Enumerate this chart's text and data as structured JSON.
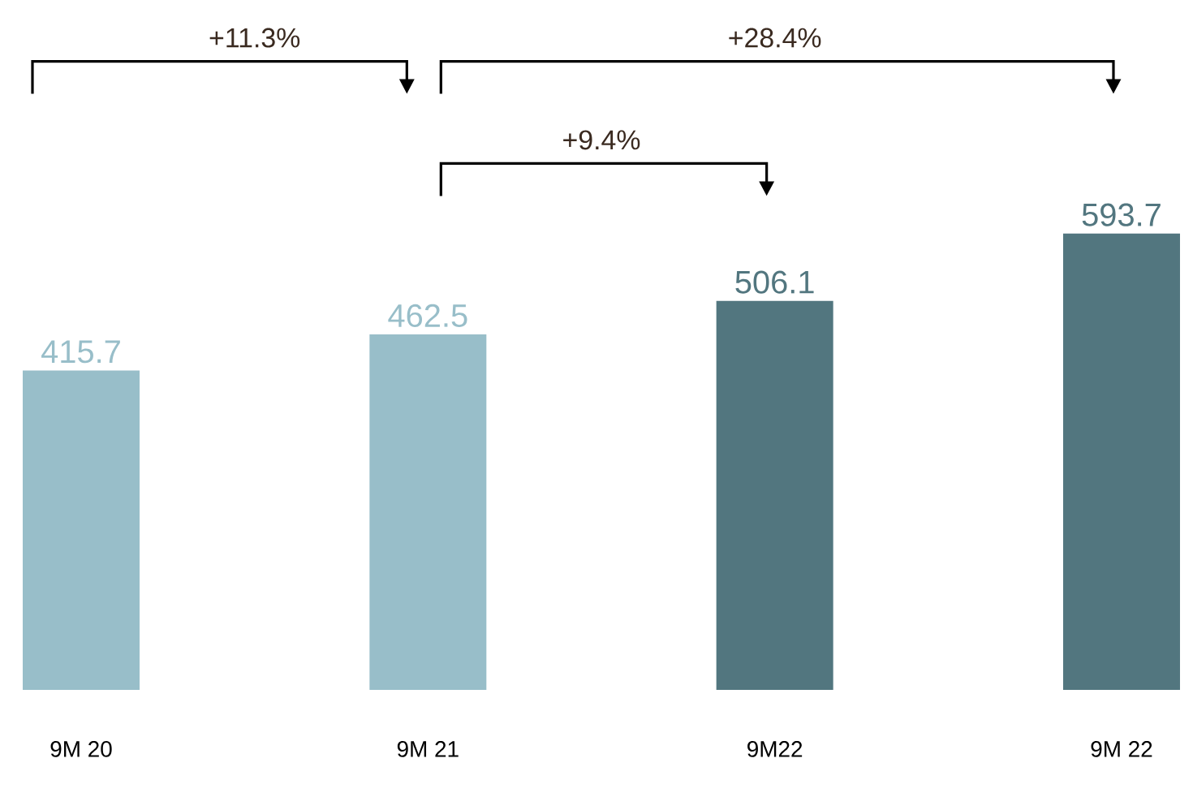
{
  "chart_data": {
    "type": "bar",
    "categories": [
      "9M 20",
      "9M 21",
      "9M22",
      "9M 22"
    ],
    "values": [
      415.7,
      462.5,
      506.1,
      593.7
    ],
    "colors": [
      "#98bec9",
      "#98bec9",
      "#52767f",
      "#52767f"
    ],
    "data_labels": true,
    "annotations": [
      "+11.3%",
      "+28.4%",
      "+9.4%"
    ]
  }
}
